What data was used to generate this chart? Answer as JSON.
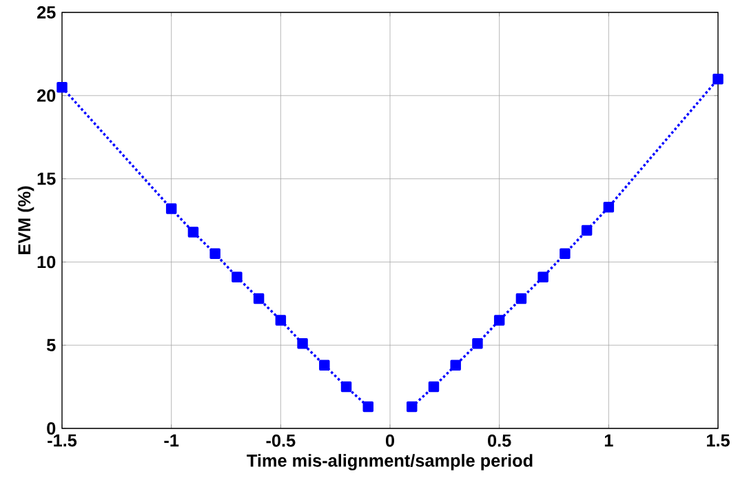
{
  "chart_data": {
    "type": "line",
    "xlabel": "Time mis-alignment/sample period",
    "ylabel": "EVM (%)",
    "x": [
      -1.5,
      -1.0,
      -0.9,
      -0.8,
      -0.7,
      -0.6,
      -0.5,
      -0.4,
      -0.3,
      -0.2,
      -0.1,
      0,
      0.1,
      0.2,
      0.3,
      0.4,
      0.5,
      0.6,
      0.7,
      0.8,
      0.9,
      1.0,
      1.5
    ],
    "series": [
      {
        "color": "#0000ff",
        "values": [
          20.5,
          13.2,
          11.8,
          10.5,
          9.1,
          7.8,
          6.5,
          5.1,
          3.8,
          2.5,
          1.3,
          null,
          1.3,
          2.5,
          3.8,
          5.1,
          6.5,
          7.8,
          9.1,
          10.5,
          11.9,
          13.3,
          21.0
        ]
      }
    ],
    "xlim": [
      -1.5,
      1.5
    ],
    "ylim": [
      0,
      25
    ],
    "xticks": [
      -1.5,
      -1,
      -0.5,
      0,
      0.5,
      1,
      1.5
    ],
    "yticks": [
      0,
      5,
      10,
      15,
      20,
      25
    ],
    "grid": true,
    "marker": "square",
    "line_style": "dotted"
  }
}
